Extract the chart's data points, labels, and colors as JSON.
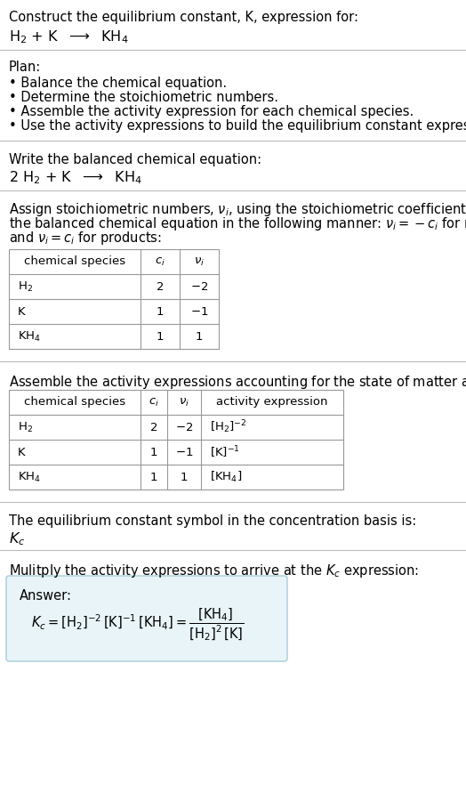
{
  "title_line1": "Construct the equilibrium constant, K, expression for:",
  "plan_header": "Plan:",
  "plan_items": [
    "• Balance the chemical equation.",
    "• Determine the stoichiometric numbers.",
    "• Assemble the activity expression for each chemical species.",
    "• Use the activity expressions to build the equilibrium constant expression."
  ],
  "balanced_header": "Write the balanced chemical equation:",
  "stoich_intro_lines": [
    "Assign stoichiometric numbers, $\\nu_i$, using the stoichiometric coefficients, $c_i$, from",
    "the balanced chemical equation in the following manner: $\\nu_i = -c_i$ for reactants",
    "and $\\nu_i = c_i$ for products:"
  ],
  "activity_intro": "Assemble the activity expressions accounting for the state of matter and $\\nu_i$:",
  "kc_intro": "The equilibrium constant symbol in the concentration basis is:",
  "multiply_intro": "Mulitply the activity expressions to arrive at the $K_c$ expression:",
  "answer_label": "Answer:",
  "bg_color": "#ffffff",
  "answer_bg": "#e8f4f8",
  "answer_border": "#a8ccd8",
  "separator_color": "#bbbbbb",
  "text_color": "#000000",
  "font_size": 10.5,
  "small_font": 9.5
}
